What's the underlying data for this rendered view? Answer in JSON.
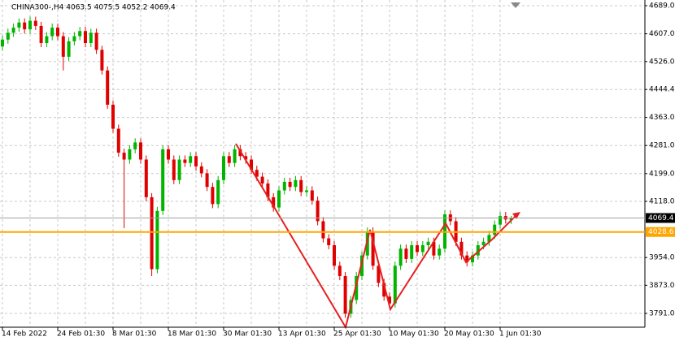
{
  "chart_data": {
    "type": "candlestick",
    "title": "CHINA300-,H4  4063.5 4075.5 4052.2 4069.4",
    "categories": [
      "14 Feb 2022",
      null,
      null,
      null,
      null,
      null,
      null,
      null,
      null,
      null,
      "24 Feb 01:30",
      null,
      null,
      null,
      null,
      null,
      null,
      null,
      null,
      null,
      "8 Mar 01:30",
      null,
      null,
      null,
      null,
      null,
      null,
      null,
      null,
      null,
      "18 Mar 01:30",
      null,
      null,
      null,
      null,
      null,
      null,
      null,
      null,
      null,
      "30 Mar 01:30",
      null,
      null,
      null,
      null,
      null,
      null,
      null,
      null,
      null,
      "13 Apr 01:30",
      null,
      null,
      null,
      null,
      null,
      null,
      null,
      null,
      null,
      "25 Apr 01:30",
      null,
      null,
      null,
      null,
      null,
      null,
      null,
      null,
      null,
      "10 May 01:30",
      null,
      null,
      null,
      null,
      null,
      null,
      null,
      null,
      null,
      "20 May 01:30",
      null,
      null,
      null,
      null,
      null,
      null,
      null,
      null,
      null,
      "1 Jun 01:30",
      null,
      null
    ],
    "open": [
      4570,
      4590,
      4610,
      4625,
      4640,
      4620,
      4645,
      4630,
      4580,
      4600,
      4625,
      4600,
      4540,
      4585,
      4600,
      4615,
      4580,
      4610,
      4560,
      4500,
      4400,
      4330,
      4260,
      4240,
      4270,
      4290,
      4240,
      4130,
      3920,
      4090,
      4270,
      4240,
      4180,
      4240,
      4230,
      4250,
      4220,
      4200,
      4160,
      4110,
      4180,
      4250,
      4230,
      4270,
      4250,
      4240,
      4210,
      4190,
      4170,
      4130,
      4100,
      4150,
      4175,
      4160,
      4180,
      4145,
      4150,
      4120,
      4060,
      4010,
      3990,
      3930,
      3900,
      3790,
      3830,
      3900,
      3960,
      4030,
      3930,
      3880,
      3840,
      3820,
      3930,
      3980,
      3950,
      3990,
      3970,
      3990,
      4000,
      3960,
      3980,
      4080,
      4060,
      4000,
      3960,
      3940,
      3960,
      3990,
      4000,
      4020,
      4050,
      4075,
      4063.5
    ],
    "high": [
      4602,
      4622,
      4637,
      4652,
      4652,
      4657,
      4657,
      4642,
      4612,
      4637,
      4637,
      4612,
      4597,
      4612,
      4627,
      4627,
      4622,
      4622,
      4572,
      4512,
      4412,
      4342,
      4272,
      4282,
      4302,
      4302,
      4252,
      4142,
      4102,
      4282,
      4282,
      4252,
      4252,
      4252,
      4262,
      4262,
      4232,
      4212,
      4172,
      4192,
      4262,
      4262,
      4282,
      4282,
      4262,
      4252,
      4222,
      4202,
      4182,
      4142,
      4162,
      4187,
      4187,
      4192,
      4192,
      4162,
      4162,
      4132,
      4072,
      4022,
      4002,
      3942,
      3912,
      3842,
      3912,
      3972,
      4042,
      4042,
      3942,
      3892,
      3852,
      3942,
      3992,
      3992,
      4002,
      4002,
      4002,
      4012,
      4012,
      3992,
      4092,
      4092,
      4072,
      4012,
      3972,
      3972,
      4002,
      4012,
      4032,
      4062,
      4087,
      4087,
      4075.5
    ],
    "low": [
      4558,
      4578,
      4598,
      4613,
      4608,
      4608,
      4618,
      4568,
      4568,
      4588,
      4588,
      4500,
      4528,
      4573,
      4588,
      4568,
      4568,
      4548,
      4488,
      4388,
      4318,
      4248,
      4040,
      4228,
      4258,
      4228,
      4118,
      3900,
      3908,
      4078,
      4228,
      4168,
      4168,
      4218,
      4218,
      4208,
      4188,
      4148,
      4098,
      4098,
      4168,
      4218,
      4218,
      4238,
      4228,
      4198,
      4178,
      4158,
      4118,
      4088,
      4088,
      4138,
      4148,
      4148,
      4133,
      4133,
      4108,
      4048,
      3998,
      3978,
      3918,
      3888,
      3778,
      3778,
      3818,
      3888,
      3948,
      3918,
      3868,
      3828,
      3808,
      3808,
      3918,
      3938,
      3938,
      3958,
      3958,
      3978,
      3948,
      3948,
      3968,
      4048,
      3988,
      3948,
      3928,
      3928,
      3948,
      3978,
      3988,
      4008,
      4038,
      4053,
      4052.2
    ],
    "close": [
      4590,
      4610,
      4625,
      4640,
      4620,
      4645,
      4630,
      4580,
      4600,
      4625,
      4600,
      4540,
      4585,
      4600,
      4615,
      4580,
      4610,
      4560,
      4500,
      4400,
      4330,
      4260,
      4240,
      4270,
      4290,
      4240,
      4130,
      3920,
      4090,
      4270,
      4240,
      4180,
      4240,
      4230,
      4250,
      4220,
      4200,
      4160,
      4110,
      4180,
      4250,
      4230,
      4270,
      4250,
      4240,
      4210,
      4190,
      4170,
      4130,
      4100,
      4150,
      4175,
      4160,
      4180,
      4145,
      4150,
      4120,
      4060,
      4010,
      3990,
      3930,
      3900,
      3790,
      3830,
      3900,
      3960,
      4030,
      3930,
      3880,
      3840,
      3820,
      3930,
      3980,
      3950,
      3990,
      3970,
      3990,
      4000,
      3960,
      3980,
      4080,
      4060,
      4000,
      3960,
      3940,
      3960,
      3990,
      4000,
      4020,
      4050,
      4075,
      4065,
      4069.4
    ],
    "up_color": "#00b400",
    "down_color": "#e00000",
    "ylim": [
      3750.7,
      4705.6
    ],
    "yticks": [
      {
        "value": 4689,
        "label": "4689.0"
      },
      {
        "value": 4607,
        "label": "4607.0"
      },
      {
        "value": 4526,
        "label": "4526.0"
      },
      4444.4,
      {
        "value": 4363,
        "label": "4363.0"
      },
      {
        "value": 4281,
        "label": "4281.0"
      },
      {
        "value": 4199,
        "label": "4199.0"
      },
      {
        "value": 4118,
        "label": "4118.0"
      },
      {
        "value": 3954,
        "label": "3954.0"
      },
      {
        "value": 3873,
        "label": "3873.0"
      },
      {
        "value": 3791,
        "label": "3791.0"
      }
    ],
    "grid": true,
    "hline": {
      "value": 4028.6,
      "color": "#ffa500"
    },
    "last_price": 4069.4
  }
}
